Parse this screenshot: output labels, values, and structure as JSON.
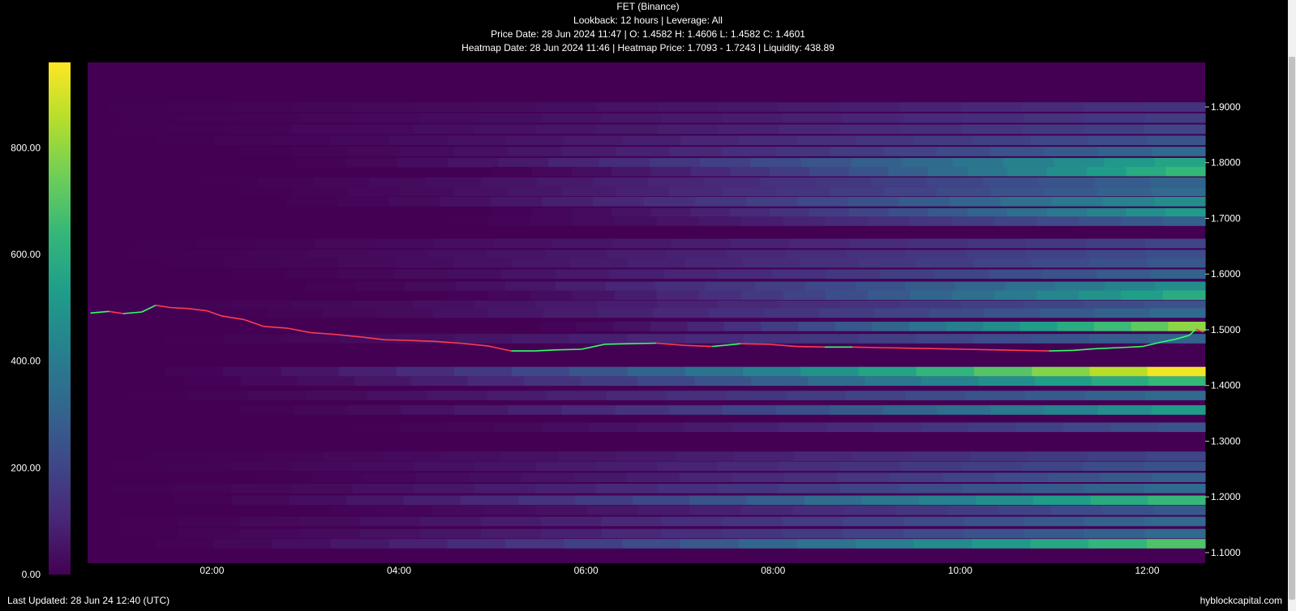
{
  "header": {
    "title": "FET (Binance)",
    "line2": "Lookback: 12 hours | Leverage: All",
    "line3": "Price Date: 28 Jun 2024 11:47 | O: 1.4582 H: 1.4606 L: 1.4582 C: 1.4601",
    "line4": "Heatmap Date: 28 Jun 2024 11:46 | Heatmap Price: 1.7093 - 1.7243 | Liquidity: 438.89"
  },
  "footer": {
    "updated": "Last Updated: 28 Jun 24 12:40 (UTC)",
    "brand": "hyblockcapital.com"
  },
  "colors": {
    "background": "#000000",
    "up_candle": "#33ff66",
    "down_candle": "#ff3b4f",
    "colormap": [
      "#440154",
      "#482878",
      "#3e4989",
      "#31688e",
      "#26828e",
      "#1f9e89",
      "#35b779",
      "#6ece58",
      "#b5de2b",
      "#fde725"
    ]
  },
  "chart_data": {
    "type": "heatmap",
    "title": "FET (Binance)",
    "x_axis": {
      "ticks": [
        "02:00",
        "04:00",
        "06:00",
        "08:00",
        "10:00",
        "12:00"
      ],
      "range_hours": [
        0.67,
        12.62
      ]
    },
    "y_axis": {
      "side": "right",
      "ticks": [
        "1.1000",
        "1.2000",
        "1.3000",
        "1.4000",
        "1.5000",
        "1.6000",
        "1.7000",
        "1.8000",
        "1.9000"
      ],
      "range": [
        1.081,
        1.98
      ]
    },
    "colorbar": {
      "side": "left",
      "ticks": [
        "0.00",
        "200.00",
        "400.00",
        "600.00",
        "800.00"
      ],
      "range": [
        0,
        960
      ]
    },
    "liquidity_bands": [
      {
        "price": 1.9,
        "start": 0.9,
        "max_value": 140
      },
      {
        "price": 1.88,
        "start": 1.0,
        "max_value": 170
      },
      {
        "price": 1.86,
        "start": 0.9,
        "max_value": 200
      },
      {
        "price": 1.84,
        "start": 1.4,
        "max_value": 250
      },
      {
        "price": 1.82,
        "start": 2.3,
        "max_value": 330
      },
      {
        "price": 1.8,
        "start": 2.9,
        "max_value": 560
      },
      {
        "price": 1.784,
        "start": 5.0,
        "max_value": 640
      },
      {
        "price": 1.765,
        "start": 1.9,
        "max_value": 300
      },
      {
        "price": 1.748,
        "start": 2.3,
        "max_value": 330
      },
      {
        "price": 1.73,
        "start": 2.8,
        "max_value": 470
      },
      {
        "price": 1.71,
        "start": 5.0,
        "max_value": 520
      },
      {
        "price": 1.695,
        "start": 4.5,
        "max_value": 290
      },
      {
        "price": 1.655,
        "start": 1.2,
        "max_value": 200
      },
      {
        "price": 1.635,
        "start": 1.1,
        "max_value": 230
      },
      {
        "price": 1.62,
        "start": 1.5,
        "max_value": 260
      },
      {
        "price": 1.6,
        "start": 2.2,
        "max_value": 300
      },
      {
        "price": 1.578,
        "start": 3.0,
        "max_value": 470
      },
      {
        "price": 1.562,
        "start": 4.5,
        "max_value": 590
      },
      {
        "price": 1.544,
        "start": 0.9,
        "max_value": 240
      },
      {
        "price": 1.53,
        "start": 2.0,
        "max_value": 330
      },
      {
        "price": 1.506,
        "start": 5.5,
        "max_value": 790
      },
      {
        "price": 1.484,
        "start": 1.5,
        "max_value": 300
      },
      {
        "price": 1.425,
        "start": 1.5,
        "max_value": 940
      },
      {
        "price": 1.408,
        "start": 1.7,
        "max_value": 640
      },
      {
        "price": 1.382,
        "start": 1.1,
        "max_value": 330
      },
      {
        "price": 1.356,
        "start": 2.3,
        "max_value": 520
      },
      {
        "price": 1.325,
        "start": 3.5,
        "max_value": 250
      },
      {
        "price": 1.273,
        "start": 1.3,
        "max_value": 200
      },
      {
        "price": 1.255,
        "start": 0.9,
        "max_value": 240
      },
      {
        "price": 1.235,
        "start": 2.5,
        "max_value": 290
      },
      {
        "price": 1.215,
        "start": 0.9,
        "max_value": 330
      },
      {
        "price": 1.194,
        "start": 1.6,
        "max_value": 640
      },
      {
        "price": 1.176,
        "start": 2.7,
        "max_value": 260
      },
      {
        "price": 1.156,
        "start": 1.0,
        "max_value": 330
      },
      {
        "price": 1.134,
        "start": 1.0,
        "max_value": 330
      },
      {
        "price": 1.116,
        "start": 1.4,
        "max_value": 690
      }
    ],
    "price_series": [
      [
        0.7,
        1.53
      ],
      [
        0.9,
        1.533
      ],
      [
        1.05,
        1.529
      ],
      [
        1.25,
        1.532
      ],
      [
        1.4,
        1.544
      ],
      [
        1.55,
        1.54
      ],
      [
        1.75,
        1.538
      ],
      [
        1.95,
        1.534
      ],
      [
        2.1,
        1.525
      ],
      [
        2.35,
        1.518
      ],
      [
        2.55,
        1.506
      ],
      [
        2.8,
        1.503
      ],
      [
        3.05,
        1.495
      ],
      [
        3.3,
        1.492
      ],
      [
        3.6,
        1.487
      ],
      [
        3.85,
        1.482
      ],
      [
        4.1,
        1.481
      ],
      [
        4.4,
        1.479
      ],
      [
        4.65,
        1.476
      ],
      [
        4.95,
        1.471
      ],
      [
        5.2,
        1.462
      ],
      [
        5.45,
        1.462
      ],
      [
        5.7,
        1.464
      ],
      [
        5.95,
        1.465
      ],
      [
        6.2,
        1.474
      ],
      [
        6.45,
        1.475
      ],
      [
        6.75,
        1.476
      ],
      [
        7.05,
        1.472
      ],
      [
        7.35,
        1.47
      ],
      [
        7.65,
        1.475
      ],
      [
        7.95,
        1.474
      ],
      [
        8.25,
        1.47
      ],
      [
        8.55,
        1.469
      ],
      [
        8.85,
        1.469
      ],
      [
        9.15,
        1.468
      ],
      [
        9.45,
        1.467
      ],
      [
        9.75,
        1.466
      ],
      [
        10.05,
        1.465
      ],
      [
        10.35,
        1.464
      ],
      [
        10.65,
        1.463
      ],
      [
        10.95,
        1.462
      ],
      [
        11.2,
        1.463
      ],
      [
        11.45,
        1.466
      ],
      [
        11.7,
        1.468
      ],
      [
        11.95,
        1.47
      ],
      [
        12.15,
        1.478
      ],
      [
        12.3,
        1.483
      ],
      [
        12.45,
        1.49
      ],
      [
        12.52,
        1.501
      ],
      [
        12.6,
        1.496
      ]
    ]
  }
}
